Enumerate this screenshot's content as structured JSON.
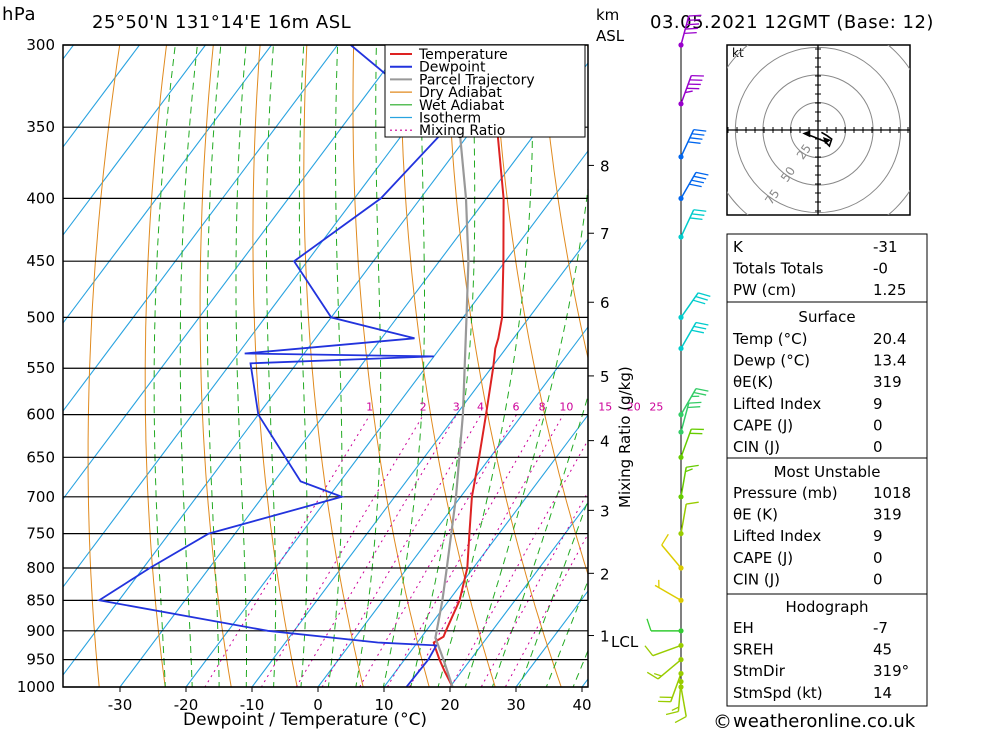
{
  "header": {
    "pressure_unit": "hPa",
    "location": "25°50'N  131°14'E  16m  ASL",
    "height_unit_top": "km",
    "height_unit_bottom": "ASL",
    "datetime": "03.05.2021  12GMT  (Base: 12)"
  },
  "chart_data": {
    "type": "skew-t log-p sounding",
    "xlabel": "Dewpoint / Temperature (°C)",
    "ylabel": "hPa",
    "right_label": "Mixing Ratio (g/kg)",
    "x_ticks": [
      -30,
      -20,
      -10,
      0,
      10,
      20,
      30,
      40
    ],
    "pressure_levels": [
      300,
      350,
      400,
      450,
      500,
      550,
      600,
      650,
      700,
      750,
      800,
      850,
      900,
      950,
      1000
    ],
    "height_ticks_km": [
      {
        "label": "8",
        "p": 376
      },
      {
        "label": "7",
        "p": 427
      },
      {
        "label": "6",
        "p": 486
      },
      {
        "label": "5",
        "p": 558
      },
      {
        "label": "4",
        "p": 630
      },
      {
        "label": "3",
        "p": 718
      },
      {
        "label": "2",
        "p": 808
      },
      {
        "label": "1",
        "p": 908
      }
    ],
    "lcl": {
      "label": "LCL",
      "p": 912
    },
    "mixing_ratio_labels": [
      "1",
      "2",
      "3",
      "4",
      "6",
      "8",
      "10",
      "15",
      "20",
      "25"
    ],
    "legend": [
      "Temperature",
      "Dewpoint",
      "Parcel Trajectory",
      "Dry Adiabat",
      "Wet Adiabat",
      "Isotherm",
      "Mixing Ratio"
    ],
    "series": [
      {
        "name": "Temperature",
        "color": "#dd2222",
        "points": [
          [
            1000,
            20.4
          ],
          [
            970,
            17.3
          ],
          [
            950,
            15.3
          ],
          [
            930,
            13.4
          ],
          [
            920,
            12.5
          ],
          [
            910,
            13.3
          ],
          [
            900,
            13.0
          ],
          [
            850,
            11.6
          ],
          [
            800,
            9.1
          ],
          [
            750,
            5.5
          ],
          [
            700,
            1.7
          ],
          [
            650,
            -1.7
          ],
          [
            600,
            -5.5
          ],
          [
            550,
            -9.7
          ],
          [
            530,
            -11.6
          ],
          [
            520,
            -12.3
          ],
          [
            500,
            -14.1
          ],
          [
            450,
            -20.3
          ],
          [
            400,
            -27.4
          ],
          [
            350,
            -36.5
          ],
          [
            325,
            -40.9
          ],
          [
            300,
            -44.0
          ]
        ]
      },
      {
        "name": "Dewpoint",
        "color": "#2233dd",
        "points": [
          [
            1000,
            13.4
          ],
          [
            950,
            13.6
          ],
          [
            925,
            13.2
          ],
          [
            920,
            4.0
          ],
          [
            900,
            -14.0
          ],
          [
            850,
            -43.0
          ],
          [
            800,
            -39.0
          ],
          [
            750,
            -34.0
          ],
          [
            700,
            -18.0
          ],
          [
            680,
            -26.0
          ],
          [
            600,
            -40.0
          ],
          [
            545,
            -47.0
          ],
          [
            538,
            -20.0
          ],
          [
            535,
            -49.0
          ],
          [
            520,
            -25.0
          ],
          [
            500,
            -40.0
          ],
          [
            450,
            -52.0
          ],
          [
            400,
            -46.0
          ],
          [
            350,
            -44.0
          ],
          [
            330,
            -53.0
          ],
          [
            300,
            -68.0
          ]
        ]
      },
      {
        "name": "Parcel Trajectory",
        "color": "#999999",
        "points": [
          [
            1000,
            20.4
          ],
          [
            950,
            15.9
          ],
          [
            912,
            12.2
          ],
          [
            850,
            9.0
          ],
          [
            800,
            6.0
          ],
          [
            700,
            -0.7
          ],
          [
            600,
            -9.0
          ],
          [
            500,
            -19.5
          ],
          [
            450,
            -25.6
          ],
          [
            400,
            -33.1
          ],
          [
            350,
            -42.2
          ],
          [
            300,
            -53.5
          ]
        ]
      }
    ],
    "hodograph": {
      "unit": "kt",
      "rings": [
        "25",
        "50",
        "75"
      ],
      "trace": [
        [
          3,
          -2
        ],
        [
          8,
          -5
        ],
        [
          12,
          -8
        ],
        [
          10,
          -14
        ],
        [
          6,
          -10
        ],
        [
          -4,
          -6
        ],
        [
          -12,
          -3
        ]
      ]
    },
    "wind_barbs": [
      {
        "p": 1000,
        "dir": 170,
        "spd": 10,
        "color": "#99cc00"
      },
      {
        "p": 990,
        "dir": 185,
        "spd": 15,
        "color": "#99cc00"
      },
      {
        "p": 975,
        "dir": 200,
        "spd": 20,
        "color": "#99cc00"
      },
      {
        "p": 950,
        "dir": 230,
        "spd": 15,
        "color": "#99cc00"
      },
      {
        "p": 925,
        "dir": 250,
        "spd": 10,
        "color": "#99cc00"
      },
      {
        "p": 900,
        "dir": 270,
        "spd": 10,
        "color": "#33cc33"
      },
      {
        "p": 850,
        "dir": 300,
        "spd": 5,
        "color": "#ddcc00"
      },
      {
        "p": 800,
        "dir": 320,
        "spd": 10,
        "color": "#ddcc00"
      },
      {
        "p": 750,
        "dir": 10,
        "spd": 10,
        "color": "#99cc00"
      },
      {
        "p": 700,
        "dir": 10,
        "spd": 15,
        "color": "#66cc00"
      },
      {
        "p": 650,
        "dir": 20,
        "spd": 20,
        "color": "#66cc00"
      },
      {
        "p": 620,
        "dir": 15,
        "spd": 20,
        "color": "#33cc66"
      },
      {
        "p": 600,
        "dir": 30,
        "spd": 25,
        "color": "#33cc66"
      },
      {
        "p": 530,
        "dir": 30,
        "spd": 30,
        "color": "#00cccc"
      },
      {
        "p": 500,
        "dir": 35,
        "spd": 30,
        "color": "#00cccc"
      },
      {
        "p": 430,
        "dir": 25,
        "spd": 30,
        "color": "#00cccc"
      },
      {
        "p": 400,
        "dir": 30,
        "spd": 40,
        "color": "#0066ee"
      },
      {
        "p": 370,
        "dir": 25,
        "spd": 40,
        "color": "#0066ee"
      },
      {
        "p": 335,
        "dir": 20,
        "spd": 45,
        "color": "#9900cc"
      },
      {
        "p": 300,
        "dir": 15,
        "spd": 50,
        "color": "#9900cc"
      }
    ]
  },
  "indices": {
    "general": [
      {
        "label": "K",
        "value": "-31"
      },
      {
        "label": "Totals Totals",
        "value": "-0"
      },
      {
        "label": "PW (cm)",
        "value": "1.25"
      }
    ],
    "surface_title": "Surface",
    "surface": [
      {
        "label": "Temp (°C)",
        "value": "20.4"
      },
      {
        "label": "Dewp (°C)",
        "value": "13.4"
      },
      {
        "label": "θE(K)",
        "value": "319"
      },
      {
        "label": "Lifted Index",
        "value": "9"
      },
      {
        "label": "CAPE (J)",
        "value": "0"
      },
      {
        "label": "CIN (J)",
        "value": "0"
      }
    ],
    "unstable_title": "Most Unstable",
    "unstable": [
      {
        "label": "Pressure (mb)",
        "value": "1018"
      },
      {
        "label": "θE (K)",
        "value": "319"
      },
      {
        "label": "Lifted Index",
        "value": "9"
      },
      {
        "label": "CAPE (J)",
        "value": "0"
      },
      {
        "label": "CIN (J)",
        "value": "0"
      }
    ],
    "hodograph_title": "Hodograph",
    "hodograph": [
      {
        "label": "EH",
        "value": "-7"
      },
      {
        "label": "SREH",
        "value": "45"
      },
      {
        "label": "StmDir",
        "value": "319°"
      },
      {
        "label": "StmSpd (kt)",
        "value": "14"
      }
    ]
  },
  "footer": {
    "copyright_symbol": "©",
    "site": "weatheronline.co.uk"
  },
  "colors": {
    "temperature": "#dd2222",
    "dewpoint": "#2233dd",
    "parcel": "#999999",
    "dry_adiabat": "#e08a1e",
    "wet_adiabat": "#22aa22",
    "isotherm": "#29a3e0",
    "mixing_ratio": "#cc0099"
  }
}
